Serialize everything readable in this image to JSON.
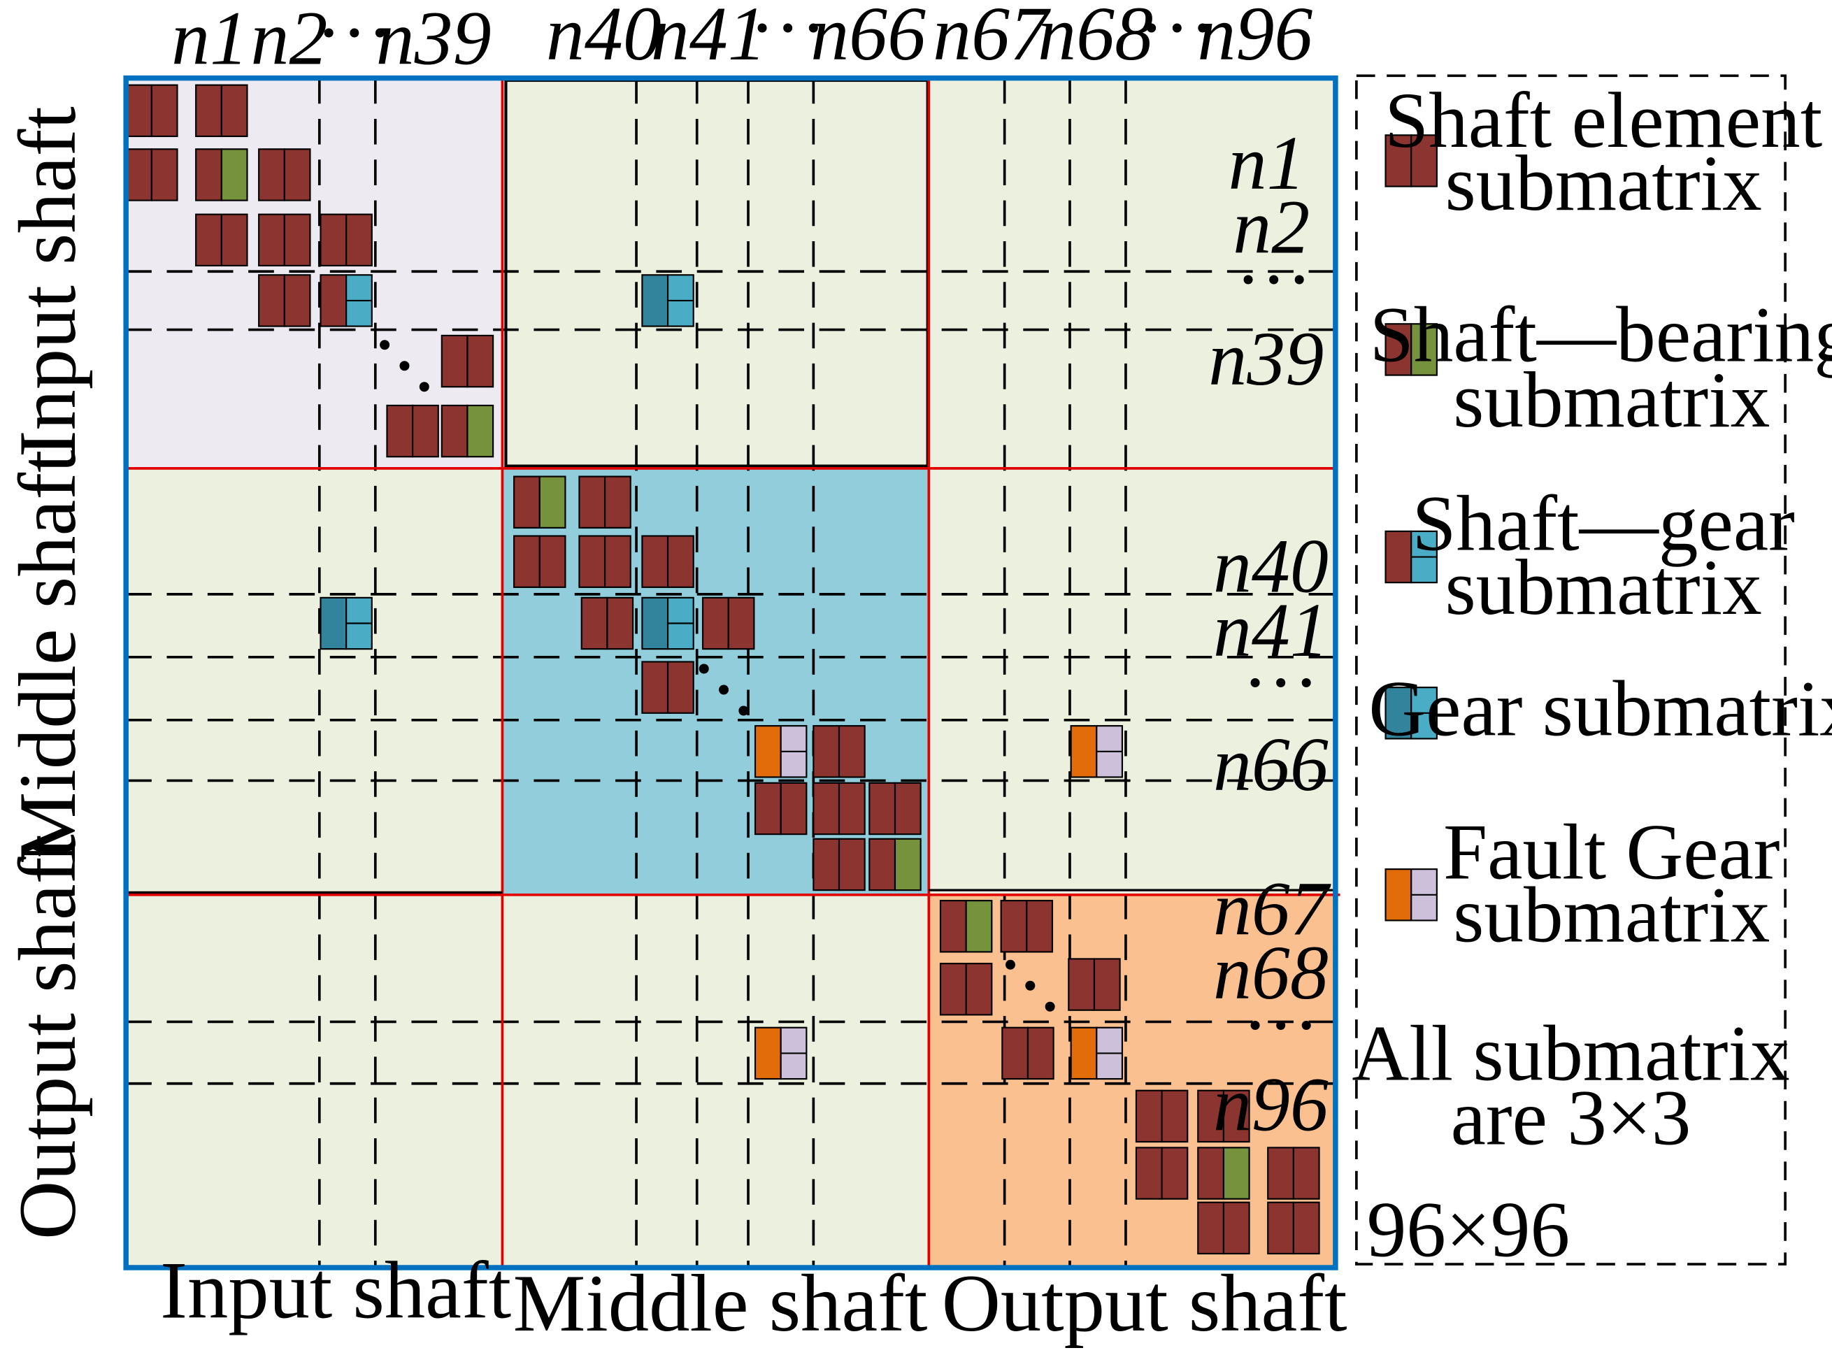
{
  "colors": {
    "shaft_element": "#8b3430",
    "shaft_bearing": "#76923c",
    "gear_dark": "#31849b",
    "gear_light": "#4bacc6",
    "fault_orange": "#e36c0a",
    "fault_lavender": "#ccc0da",
    "input_region": "#eeeaf2",
    "middle_region": "#92cddc",
    "output_region": "#fac090",
    "offdiag_region": "#ebf1de",
    "frame_blue": "#0070c0",
    "separator_red": "#e00000"
  },
  "column_labels": {
    "input": {
      "a": "n1",
      "b": "n2",
      "dots": "···",
      "c": "n39"
    },
    "middle": {
      "a": "n40",
      "b": "n41",
      "dots": "···",
      "c": "n66"
    },
    "output": {
      "a": "n67",
      "b": "n68",
      "dots": "···",
      "c": "n96"
    }
  },
  "row_labels": {
    "input": {
      "a": "n1",
      "b": "n2",
      "dots": "···",
      "c": "n39"
    },
    "middle": {
      "a": "n40",
      "b": "n41",
      "dots": "···",
      "c": "n66"
    },
    "output": {
      "a": "n67",
      "b": "n68",
      "dots": "···",
      "c": "n96"
    }
  },
  "axis_labels": {
    "rows": [
      "Input shaft",
      "Middle shaft",
      "Output shaft"
    ],
    "columns": [
      "Input shaft",
      "Middle shaft",
      "Output shaft"
    ]
  },
  "legend": {
    "items": [
      {
        "icon": "shaft-element-submatrix-icon",
        "line1": "Shaft element",
        "line2": "submatrix"
      },
      {
        "icon": "shaft-bearing-submatrix-icon",
        "line1": "Shaft—bearing",
        "line2": "submatrix"
      },
      {
        "icon": "shaft-gear-submatrix-icon",
        "line1": "Shaft—gear",
        "line2": "submatrix"
      },
      {
        "icon": "gear-submatrix-icon",
        "line1": "Gear submatrix",
        "line2": ""
      },
      {
        "icon": "fault-gear-submatrix-icon",
        "line1": "Fault Gear",
        "line2": "submatrix"
      }
    ],
    "note_line1": "All submatrix",
    "note_line2": "are 3×3",
    "size_label": "96×96"
  }
}
